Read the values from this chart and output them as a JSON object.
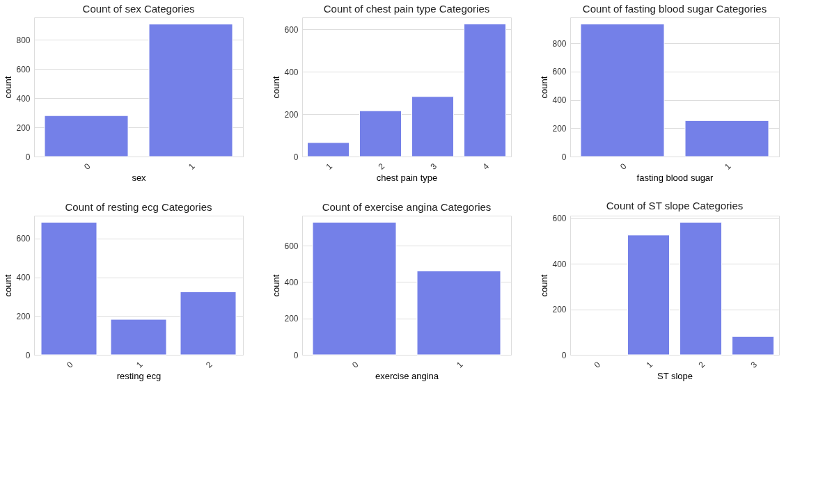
{
  "chart_data": [
    {
      "type": "bar",
      "title": "Count of sex Categories",
      "xlabel": "sex",
      "ylabel": "count",
      "categories": [
        "0",
        "1"
      ],
      "values": [
        281,
        909
      ],
      "color": "#7480e8",
      "ylim": [
        0,
        955
      ],
      "yticks": [
        0,
        200,
        400,
        600,
        800
      ],
      "grid": "y"
    },
    {
      "type": "bar",
      "title": "Count of chest pain type Categories",
      "xlabel": "chest pain type",
      "ylabel": "count",
      "categories": [
        "1",
        "2",
        "3",
        "4"
      ],
      "values": [
        66,
        216,
        283,
        625
      ],
      "color": "#7480e8",
      "ylim": [
        0,
        656
      ],
      "yticks": [
        0,
        200,
        400,
        600
      ],
      "grid": "y"
    },
    {
      "type": "bar",
      "title": "Count of fasting blood sugar Categories",
      "xlabel": "fasting blood sugar",
      "ylabel": "count",
      "categories": [
        "0",
        "1"
      ],
      "values": [
        936,
        254
      ],
      "color": "#7480e8",
      "ylim": [
        0,
        983
      ],
      "yticks": [
        0,
        200,
        400,
        600,
        800
      ],
      "grid": "y"
    },
    {
      "type": "bar",
      "title": "Count of resting ecg Categories",
      "xlabel": "resting ecg",
      "ylabel": "count",
      "categories": [
        "0",
        "1",
        "2"
      ],
      "values": [
        684,
        183,
        325
      ],
      "color": "#7480e8",
      "ylim": [
        0,
        718
      ],
      "yticks": [
        0,
        200,
        400,
        600
      ],
      "grid": "y"
    },
    {
      "type": "bar",
      "title": "Count of exercise angina Categories",
      "xlabel": "exercise angina",
      "ylabel": "count",
      "categories": [
        "0",
        "1"
      ],
      "values": [
        729,
        461
      ],
      "color": "#7480e8",
      "ylim": [
        0,
        765
      ],
      "yticks": [
        0,
        200,
        400,
        600
      ],
      "grid": "y"
    },
    {
      "type": "bar",
      "title": "Count of ST slope Categories",
      "xlabel": "ST slope",
      "ylabel": "count",
      "categories": [
        "0",
        "1",
        "2",
        "3"
      ],
      "values": [
        null,
        526,
        582,
        81
      ],
      "color": "#7480e8",
      "ylim": [
        0,
        611
      ],
      "yticks": [
        0,
        200,
        400,
        600
      ],
      "grid": "y"
    }
  ]
}
